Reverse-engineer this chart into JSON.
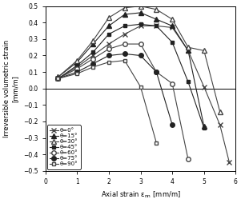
{
  "title": "",
  "xlabel": "Axial strain εₙₙ [mm/m]",
  "ylabel": "Irreversible volumetric strain [mm/m]",
  "xlim": [
    0.25,
    6.0
  ],
  "ylim": [
    -0.5,
    0.5
  ],
  "xticks": [
    0,
    1,
    2,
    3,
    4,
    5,
    6
  ],
  "yticks": [
    -0.5,
    -0.4,
    -0.3,
    -0.2,
    -0.1,
    0.0,
    0.1,
    0.2,
    0.3,
    0.4,
    0.5
  ],
  "hline_y": 0.0,
  "series": [
    {
      "label": "θ=0°",
      "marker": "x",
      "color": "#444444",
      "filled": false,
      "x": [
        0.4,
        1.0,
        1.5,
        2.0,
        2.5,
        3.0,
        3.5,
        4.0,
        4.5,
        5.0,
        5.5,
        5.8
      ],
      "y": [
        0.06,
        0.13,
        0.2,
        0.27,
        0.33,
        0.38,
        0.38,
        0.37,
        0.23,
        0.01,
        -0.22,
        -0.45
      ]
    },
    {
      "label": "θ=15°",
      "marker": "^",
      "color": "#222222",
      "filled": true,
      "x": [
        0.4,
        1.0,
        1.5,
        2.0,
        2.5,
        3.0,
        3.5,
        4.0,
        4.5,
        5.0
      ],
      "y": [
        0.07,
        0.16,
        0.27,
        0.38,
        0.45,
        0.46,
        0.42,
        0.38,
        0.23,
        -0.23
      ]
    },
    {
      "label": "θ=30°",
      "marker": "^",
      "color": "#444444",
      "filled": false,
      "x": [
        0.4,
        1.0,
        1.5,
        2.0,
        2.5,
        3.0,
        3.5,
        4.0,
        4.5,
        5.0,
        5.5
      ],
      "y": [
        0.07,
        0.17,
        0.29,
        0.43,
        0.49,
        0.5,
        0.48,
        0.42,
        0.25,
        0.23,
        -0.14
      ]
    },
    {
      "label": "θ=45°",
      "marker": "s",
      "color": "#222222",
      "filled": true,
      "x": [
        0.4,
        1.0,
        1.5,
        2.0,
        2.5,
        3.0,
        3.5,
        4.0,
        4.5,
        5.0
      ],
      "y": [
        0.06,
        0.14,
        0.22,
        0.33,
        0.38,
        0.39,
        0.38,
        0.28,
        0.04,
        -0.24
      ]
    },
    {
      "label": "θ=60°",
      "marker": "o",
      "color": "#444444",
      "filled": false,
      "x": [
        0.4,
        1.0,
        1.5,
        2.0,
        2.5,
        3.0,
        3.5,
        4.0,
        4.5
      ],
      "y": [
        0.06,
        0.12,
        0.18,
        0.24,
        0.27,
        0.27,
        0.1,
        0.03,
        -0.43
      ]
    },
    {
      "label": "θ=75°",
      "marker": "o",
      "color": "#222222",
      "filled": true,
      "x": [
        0.4,
        1.0,
        1.5,
        2.0,
        2.5,
        3.0,
        3.5,
        4.0
      ],
      "y": [
        0.06,
        0.1,
        0.15,
        0.2,
        0.21,
        0.2,
        0.1,
        -0.22
      ]
    },
    {
      "label": "θ=90°",
      "marker": "s",
      "color": "#444444",
      "filled": false,
      "x": [
        0.4,
        1.0,
        1.5,
        2.0,
        2.5,
        3.0,
        3.5
      ],
      "y": [
        0.06,
        0.09,
        0.13,
        0.16,
        0.17,
        0.01,
        -0.33
      ]
    }
  ],
  "ylabel_parts": [
    "Irreversible volumetric strain",
    "[mm/m]"
  ],
  "xlabel_parts": [
    "Axial strain ε",
    "nn",
    " [mm/m]"
  ]
}
